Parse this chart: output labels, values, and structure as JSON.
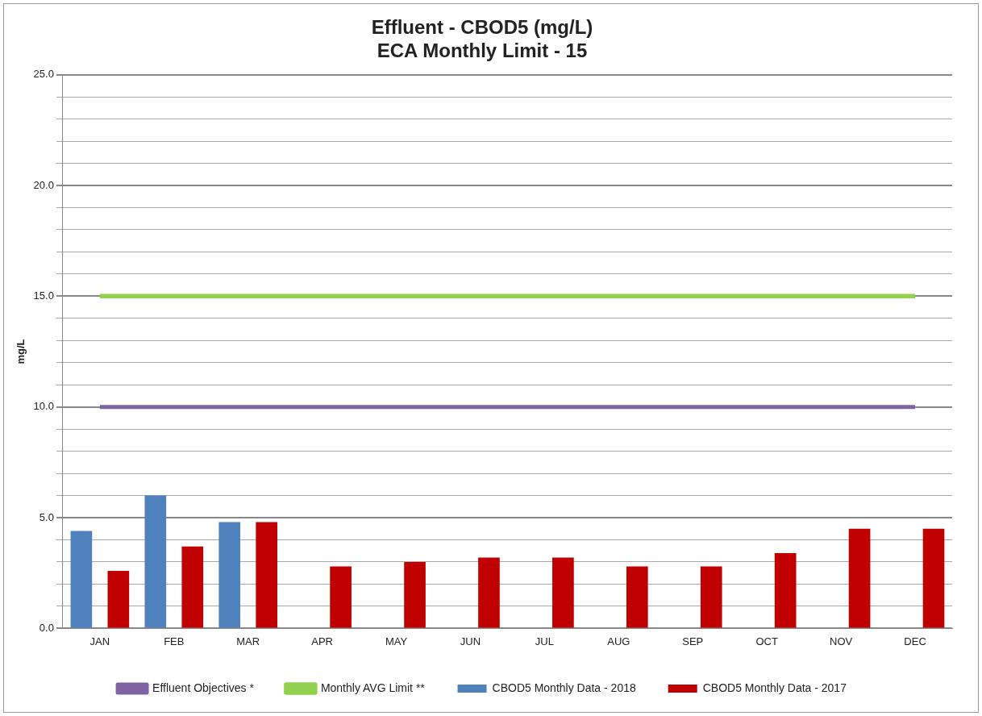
{
  "chart_data": {
    "type": "bar",
    "title": "Effluent - CBOD5 (mg/L)",
    "subtitle": "ECA Monthly Limit - 15",
    "ylabel": "mg/L",
    "categories": [
      "JAN",
      "FEB",
      "MAR",
      "APR",
      "MAY",
      "JUN",
      "JUL",
      "AUG",
      "SEP",
      "OCT",
      "NOV",
      "DEC"
    ],
    "series": [
      {
        "name": "CBOD5 Monthly Data - 2018",
        "color": "#4f81bd",
        "values": [
          4.4,
          6.0,
          4.8,
          null,
          null,
          null,
          null,
          null,
          null,
          null,
          null,
          null
        ]
      },
      {
        "name": "CBOD5 Monthly Data - 2017",
        "color": "#c00000",
        "values": [
          2.6,
          3.7,
          4.8,
          2.8,
          3.0,
          3.2,
          3.2,
          2.8,
          2.8,
          3.4,
          4.5,
          4.5
        ]
      },
      {
        "name": "Effluent Objectives *",
        "type": "line",
        "color": "#8064a2",
        "values": [
          10,
          10,
          10,
          10,
          10,
          10,
          10,
          10,
          10,
          10,
          10,
          10
        ]
      },
      {
        "name": "Monthly AVG Limit **",
        "type": "line",
        "color": "#92d050",
        "values": [
          15,
          15,
          15,
          15,
          15,
          15,
          15,
          15,
          15,
          15,
          15,
          15
        ]
      }
    ],
    "ylim": [
      0,
      25
    ],
    "yticks": [
      {
        "value": 0,
        "label": "0.0"
      },
      {
        "value": 1,
        "label": null
      },
      {
        "value": 2,
        "label": null
      },
      {
        "value": 3,
        "label": null
      },
      {
        "value": 4,
        "label": null
      },
      {
        "value": 5,
        "label": "5.0"
      },
      {
        "value": 6,
        "label": null
      },
      {
        "value": 7,
        "label": null
      },
      {
        "value": 8,
        "label": null
      },
      {
        "value": 9,
        "label": null
      },
      {
        "value": 10,
        "label": "10.0"
      },
      {
        "value": 11,
        "label": null
      },
      {
        "value": 12,
        "label": null
      },
      {
        "value": 13,
        "label": null
      },
      {
        "value": 14,
        "label": null
      },
      {
        "value": 15,
        "label": "15.0"
      },
      {
        "value": 16,
        "label": null
      },
      {
        "value": 17,
        "label": null
      },
      {
        "value": 18,
        "label": null
      },
      {
        "value": 19,
        "label": null
      },
      {
        "value": 20,
        "label": "20.0"
      },
      {
        "value": 21,
        "label": null
      },
      {
        "value": 22,
        "label": null
      },
      {
        "value": 23,
        "label": null
      },
      {
        "value": 24,
        "label": null
      },
      {
        "value": 25,
        "label": "25.0"
      }
    ],
    "grid": "y",
    "legend": "bottom",
    "marker": "none"
  }
}
